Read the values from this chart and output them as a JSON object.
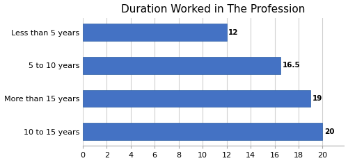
{
  "title": "Duration Worked in The Profession",
  "categories": [
    "Less than 5 years",
    "5 to 10 years",
    "More than 15 years",
    "10 to 15 years"
  ],
  "values": [
    12,
    16.5,
    19,
    20
  ],
  "bar_color": "#4472C4",
  "bar_edge_color": "#2E5FA3",
  "xlim": [
    0,
    21.8
  ],
  "xticks": [
    0,
    2,
    4,
    6,
    8,
    10,
    12,
    14,
    16,
    18,
    20
  ],
  "grid_color": "#D0D0D0",
  "background_color": "#FFFFFF",
  "title_fontsize": 11,
  "label_fontsize": 8,
  "tick_fontsize": 8,
  "value_fontsize": 7.5,
  "bar_height": 0.52
}
